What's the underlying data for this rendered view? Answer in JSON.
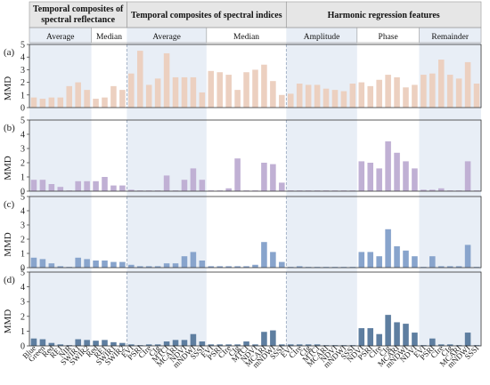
{
  "chart_data": {
    "type": "bar",
    "ylabel": "MMD",
    "ylim": [
      0,
      5
    ],
    "yticks": [
      0,
      1,
      2,
      3,
      4,
      5
    ],
    "group_headers": [
      {
        "title_lines": [
          "Temporal composites of",
          "spectral reflectance"
        ],
        "subgroups": [
          "Average",
          "Median"
        ]
      },
      {
        "title_lines": [
          "Temporal composites of spectral indices"
        ],
        "subgroups": [
          "Average",
          "Median"
        ]
      },
      {
        "title_lines": [
          "Harmonic regression features"
        ],
        "subgroups": [
          "Amplitude",
          "Phase",
          "Remainder"
        ]
      }
    ],
    "categories": [
      "Blue",
      "Green",
      "Red",
      "RE1",
      "NIR",
      "SWIR1",
      "SWIR2",
      "Red",
      "RE1",
      "SWIR1",
      "SWIR2",
      "EVI",
      "PSRI",
      "CIre",
      "CIg",
      "MTCI",
      "MCARI",
      "NDVI",
      "mNDWI",
      "SSSI",
      "EVI",
      "PSRI",
      "CIre",
      "CIg",
      "MTCI",
      "NDVI",
      "MCARI",
      "mNDWI",
      "SSSI",
      "EVI",
      "CIre",
      "CIg",
      "MTCI",
      "MCARI",
      "NDVI",
      "mNDWI",
      "SSSI",
      "NDVI",
      "PSRI",
      "CIre",
      "CIg",
      "MCARI",
      "mNDWI",
      "NDVI",
      "EVI",
      "PSRI",
      "CIre",
      "CIg",
      "MCARI",
      "mNDWI",
      "SSSI"
    ],
    "series": [
      {
        "panel": "(a)",
        "color": "#ecd0c0",
        "values": [
          0.8,
          0.7,
          0.8,
          0.8,
          1.7,
          2.0,
          1.4,
          0.7,
          0.8,
          1.7,
          1.4,
          2.7,
          4.5,
          1.8,
          2.3,
          4.3,
          2.4,
          2.4,
          2.4,
          1.2,
          2.9,
          2.8,
          2.6,
          1.4,
          2.8,
          3.0,
          3.4,
          2.1,
          1.0,
          1.1,
          1.9,
          1.8,
          1.8,
          1.5,
          1.4,
          1.3,
          1.9,
          2.0,
          1.7,
          2.2,
          2.6,
          2.4,
          1.6,
          1.8,
          2.6,
          2.7,
          3.8,
          2.6,
          2.3,
          3.6,
          1.9
        ]
      },
      {
        "panel": "(b)",
        "color": "#c0b0d4",
        "values": [
          0.8,
          0.8,
          0.5,
          0.3,
          0.05,
          0.7,
          0.7,
          0.7,
          1.0,
          0.4,
          0.4,
          0.1,
          0.05,
          0.05,
          0.05,
          1.1,
          0.05,
          0.8,
          1.6,
          0.8,
          0.05,
          0.05,
          0.2,
          2.3,
          0.05,
          0.05,
          2.0,
          1.9,
          0.6,
          0.05,
          0.05,
          0.05,
          0.05,
          0.05,
          0.05,
          0.05,
          0.05,
          2.1,
          2.0,
          1.6,
          3.5,
          2.7,
          2.1,
          1.6,
          0.1,
          0.1,
          0.2,
          0.05,
          0.05,
          2.1,
          0.05
        ]
      },
      {
        "panel": "(c)",
        "color": "#88a4cc",
        "values": [
          0.7,
          0.6,
          0.3,
          0.1,
          0.05,
          0.7,
          0.6,
          0.5,
          0.5,
          0.4,
          0.4,
          0.2,
          0.1,
          0.1,
          0.1,
          0.3,
          0.3,
          0.8,
          1.1,
          0.5,
          0.1,
          0.1,
          0.1,
          0.1,
          0.1,
          0.2,
          1.8,
          1.1,
          0.4,
          0.05,
          0.1,
          0.05,
          0.05,
          0.05,
          0.05,
          0.05,
          0.05,
          1.1,
          1.1,
          0.8,
          2.7,
          1.5,
          1.2,
          0.8,
          0.05,
          0.8,
          0.1,
          0.1,
          0.1,
          1.6,
          0.05
        ]
      },
      {
        "panel": "(d)",
        "color": "#5e7ea0",
        "values": [
          0.5,
          0.45,
          0.2,
          0.1,
          0.05,
          0.45,
          0.4,
          0.35,
          0.4,
          0.25,
          0.2,
          0.1,
          0.05,
          0.1,
          0.1,
          0.3,
          0.4,
          0.4,
          0.8,
          0.3,
          0.1,
          0.1,
          0.1,
          0.1,
          0.3,
          0.1,
          0.95,
          1.05,
          0.1,
          0.1,
          0.1,
          0.1,
          0.1,
          0.05,
          0.05,
          0.05,
          0.05,
          1.2,
          1.2,
          0.8,
          2.1,
          1.6,
          1.5,
          0.9,
          0.05,
          0.5,
          0.1,
          0.1,
          0.05,
          0.9,
          0.05
        ]
      }
    ]
  }
}
